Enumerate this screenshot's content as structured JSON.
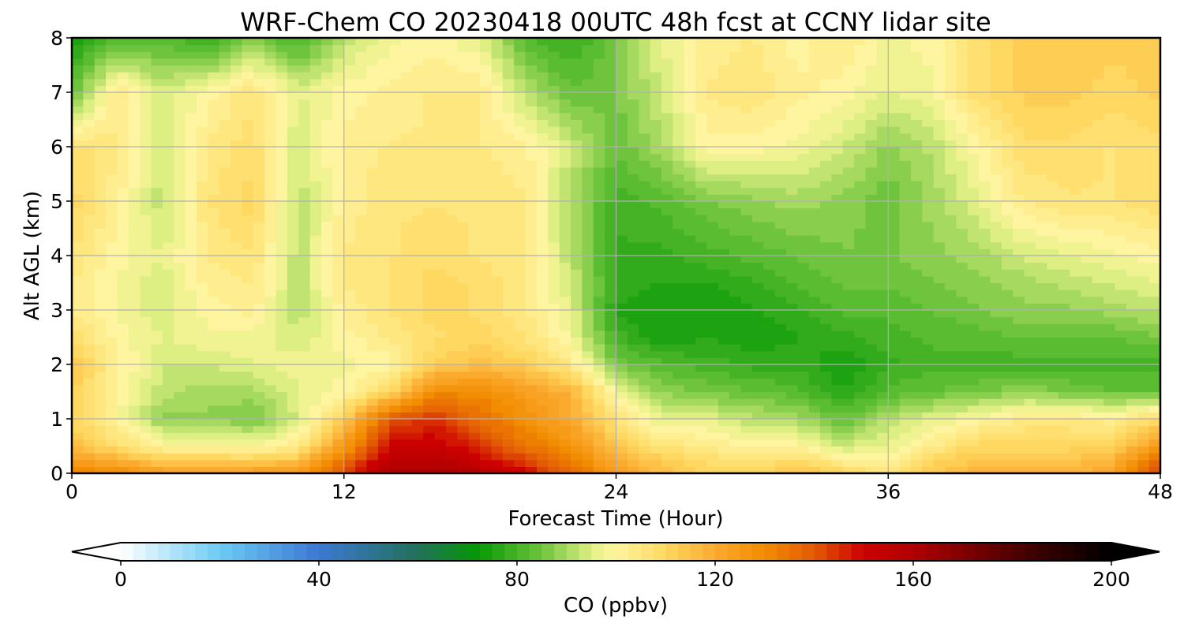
{
  "chart_data": {
    "type": "heatmap",
    "title": "WRF-Chem CO  20230418 00UTC 48h fcst at CCNY lidar site",
    "xlabel": "Forecast Time (Hour)",
    "ylabel": "Alt AGL (km)",
    "xlim": [
      0,
      48
    ],
    "ylim": [
      0,
      8
    ],
    "xticks": [
      "0",
      "12",
      "24",
      "36",
      "48"
    ],
    "yticks": [
      "0",
      "1",
      "2",
      "3",
      "4",
      "5",
      "6",
      "7",
      "8"
    ],
    "grid": true,
    "x": [
      0,
      2,
      4,
      6,
      8,
      10,
      12,
      14,
      16,
      18,
      20,
      22,
      24,
      26,
      28,
      30,
      32,
      34,
      36,
      38,
      40,
      42,
      44,
      46,
      48
    ],
    "y": [
      0,
      0.25,
      0.5,
      1,
      1.5,
      2,
      2.5,
      3,
      3.5,
      4,
      5,
      6,
      7,
      8
    ],
    "z": [
      [
        134,
        130,
        124,
        124,
        124,
        126,
        140,
        160,
        162,
        158,
        150,
        138,
        124,
        116,
        110,
        110,
        116,
        110,
        106,
        114,
        118,
        118,
        118,
        122,
        145
      ],
      [
        124,
        118,
        112,
        112,
        112,
        114,
        135,
        155,
        158,
        150,
        142,
        132,
        120,
        112,
        108,
        106,
        108,
        102,
        100,
        110,
        114,
        114,
        114,
        118,
        138
      ],
      [
        116,
        108,
        100,
        100,
        98,
        104,
        126,
        150,
        152,
        145,
        135,
        128,
        114,
        106,
        104,
        100,
        100,
        94,
        96,
        104,
        110,
        110,
        110,
        112,
        125
      ],
      [
        110,
        100,
        88,
        88,
        86,
        94,
        112,
        140,
        145,
        136,
        128,
        120,
        106,
        96,
        96,
        92,
        90,
        84,
        92,
        96,
        100,
        104,
        104,
        102,
        110
      ],
      [
        112,
        100,
        92,
        90,
        90,
        96,
        100,
        110,
        130,
        130,
        124,
        118,
        98,
        88,
        86,
        84,
        82,
        76,
        82,
        84,
        86,
        88,
        86,
        84,
        84
      ],
      [
        114,
        102,
        94,
        94,
        96,
        98,
        98,
        100,
        112,
        115,
        112,
        104,
        86,
        82,
        80,
        78,
        78,
        74,
        78,
        80,
        80,
        80,
        80,
        80,
        80
      ],
      [
        108,
        100,
        96,
        98,
        98,
        94,
        100,
        104,
        108,
        110,
        106,
        98,
        80,
        74,
        76,
        74,
        76,
        78,
        80,
        82,
        82,
        84,
        84,
        84,
        86
      ],
      [
        104,
        98,
        94,
        100,
        102,
        92,
        102,
        106,
        110,
        108,
        104,
        96,
        76,
        74,
        74,
        76,
        78,
        82,
        82,
        84,
        86,
        88,
        88,
        90,
        92
      ],
      [
        104,
        98,
        94,
        102,
        104,
        92,
        104,
        106,
        110,
        108,
        104,
        94,
        78,
        76,
        76,
        78,
        82,
        84,
        84,
        86,
        88,
        90,
        92,
        94,
        96
      ],
      [
        106,
        100,
        96,
        104,
        106,
        92,
        104,
        106,
        108,
        106,
        104,
        92,
        78,
        78,
        80,
        82,
        84,
        86,
        86,
        88,
        90,
        94,
        96,
        98,
        100
      ],
      [
        110,
        102,
        92,
        106,
        110,
        92,
        102,
        106,
        106,
        106,
        104,
        90,
        80,
        82,
        86,
        88,
        90,
        88,
        84,
        90,
        96,
        104,
        106,
        106,
        108
      ],
      [
        108,
        104,
        94,
        104,
        108,
        94,
        102,
        104,
        104,
        104,
        102,
        94,
        84,
        90,
        100,
        100,
        98,
        94,
        88,
        92,
        100,
        108,
        108,
        106,
        108
      ],
      [
        84,
        104,
        94,
        100,
        106,
        96,
        100,
        102,
        104,
        104,
        92,
        84,
        86,
        94,
        104,
        106,
        102,
        100,
        96,
        98,
        108,
        112,
        112,
        110,
        112
      ],
      [
        74,
        82,
        82,
        78,
        86,
        80,
        92,
        98,
        100,
        96,
        82,
        78,
        86,
        96,
        102,
        104,
        100,
        104,
        98,
        100,
        108,
        112,
        114,
        112,
        114
      ]
    ]
  },
  "colorbar": {
    "label": "CO  (ppbv)",
    "min": 0,
    "max": 200,
    "ticks": [
      "0",
      "40",
      "80",
      "120",
      "160",
      "200"
    ],
    "stops": [
      {
        "v": 0,
        "c": "#ffffff"
      },
      {
        "v": 20,
        "c": "#6ccbf5"
      },
      {
        "v": 40,
        "c": "#3c78d2"
      },
      {
        "v": 60,
        "c": "#22705a"
      },
      {
        "v": 72,
        "c": "#059905"
      },
      {
        "v": 85,
        "c": "#6ec43c"
      },
      {
        "v": 96,
        "c": "#e8f28a"
      },
      {
        "v": 100,
        "c": "#fff5a0"
      },
      {
        "v": 110,
        "c": "#fed860"
      },
      {
        "v": 120,
        "c": "#fbaa30"
      },
      {
        "v": 130,
        "c": "#f28c00"
      },
      {
        "v": 140,
        "c": "#e35a05"
      },
      {
        "v": 150,
        "c": "#cc0000"
      },
      {
        "v": 160,
        "c": "#b00000"
      },
      {
        "v": 185,
        "c": "#3a0000"
      },
      {
        "v": 200,
        "c": "#000000"
      }
    ]
  }
}
